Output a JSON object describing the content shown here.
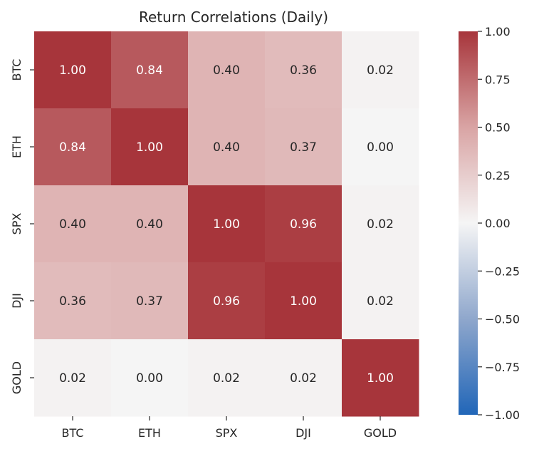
{
  "chart_data": {
    "type": "heatmap",
    "title": "Return Correlations (Daily)",
    "xlabel": "",
    "ylabel": "",
    "x_categories": [
      "BTC",
      "ETH",
      "SPX",
      "DJI",
      "GOLD"
    ],
    "y_categories": [
      "BTC",
      "ETH",
      "SPX",
      "DJI",
      "GOLD"
    ],
    "values": [
      [
        1.0,
        0.84,
        0.4,
        0.36,
        0.02
      ],
      [
        0.84,
        1.0,
        0.4,
        0.37,
        0.0
      ],
      [
        0.4,
        0.4,
        1.0,
        0.96,
        0.02
      ],
      [
        0.36,
        0.37,
        0.96,
        1.0,
        0.02
      ],
      [
        0.02,
        0.0,
        0.02,
        0.02,
        1.0
      ]
    ],
    "cell_labels": [
      [
        "1.00",
        "0.84",
        "0.40",
        "0.36",
        "0.02"
      ],
      [
        "0.84",
        "1.00",
        "0.40",
        "0.37",
        "0.00"
      ],
      [
        "0.40",
        "0.40",
        "1.00",
        "0.96",
        "0.02"
      ],
      [
        "0.36",
        "0.37",
        "0.96",
        "1.00",
        "0.02"
      ],
      [
        "0.02",
        "0.00",
        "0.02",
        "0.02",
        "1.00"
      ]
    ],
    "vmin": -1.0,
    "vmax": 1.0,
    "colormap": "coolwarm diverging",
    "color_stops": {
      "-1.00": "#2166b8",
      "-0.50": "#8fa7cc",
      "0.00": "#f5f5f5",
      "0.50": "#d9a4a4",
      "1.00": "#a7353b"
    },
    "colorbar_ticks": [
      1.0,
      0.75,
      0.5,
      0.25,
      0.0,
      -0.25,
      -0.5,
      -0.75,
      -1.0
    ],
    "colorbar_tick_labels": [
      "1.00",
      "0.75",
      "0.50",
      "0.25",
      "0.00",
      "−0.25",
      "−0.50",
      "−0.75",
      "−1.00"
    ]
  }
}
